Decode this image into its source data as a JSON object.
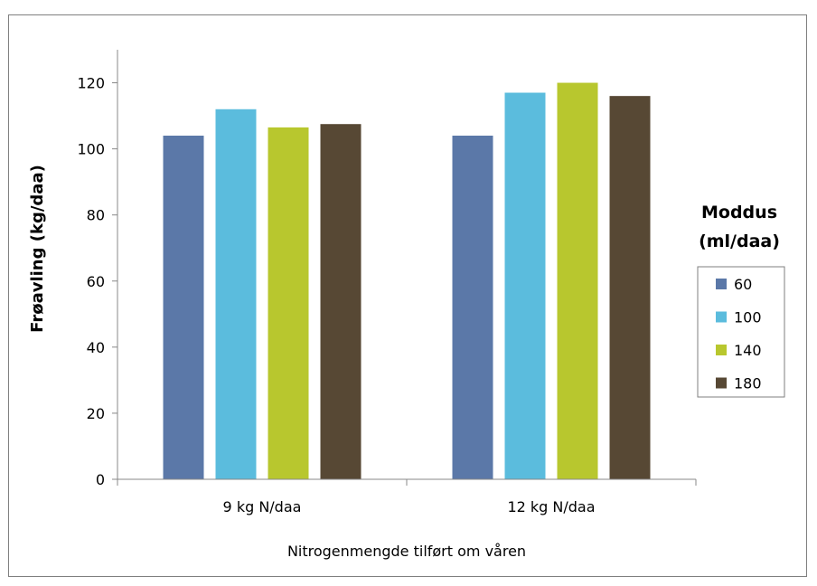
{
  "chart_data": {
    "type": "bar",
    "title": "",
    "xlabel": "Nitrogenmengde tilført om våren",
    "ylabel": "Frøavling (kg/daa)",
    "ylim": [
      0,
      130
    ],
    "yticks": [
      0,
      20,
      40,
      60,
      80,
      100,
      120
    ],
    "categories": [
      "9 kg N/daa",
      "12 kg N/daa"
    ],
    "legend": {
      "title_line1": "Moddus",
      "title_line2": "(ml/daa)",
      "placement": "right"
    },
    "series": [
      {
        "name": "60",
        "color": "#5b78a8",
        "values": [
          104,
          104
        ]
      },
      {
        "name": "100",
        "color": "#5bbcdd",
        "values": [
          112,
          117
        ]
      },
      {
        "name": "140",
        "color": "#b8c72e",
        "values": [
          106.5,
          120
        ]
      },
      {
        "name": "180",
        "color": "#574834",
        "values": [
          107.5,
          116
        ]
      }
    ],
    "grid": false
  }
}
